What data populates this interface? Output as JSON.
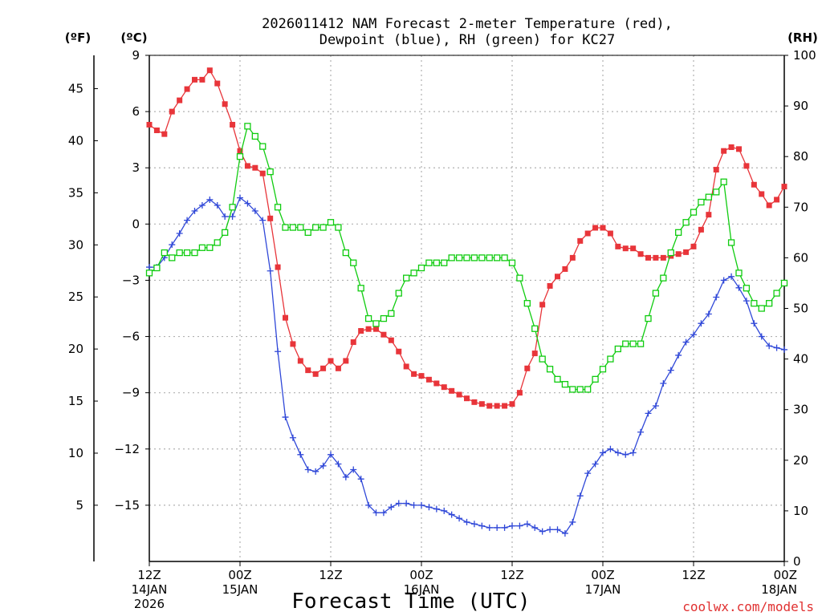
{
  "title": {
    "line1": "2026011412 NAM Forecast 2-meter Temperature (red),",
    "line2": "Dewpoint (blue), RH (green) for KC27"
  },
  "units": {
    "fahrenheit": "(ºF)",
    "celsius": "(ºC)",
    "rh": "(RH)"
  },
  "credit": "coolwx.com/models",
  "colors": {
    "temperature": "#e8353a",
    "dewpoint": "#3048d8",
    "rh": "#10cc10",
    "grid": "#b0b0b0"
  },
  "chart_data": {
    "type": "line",
    "title": "2026011412 NAM Forecast 2-meter Temperature (red), Dewpoint (blue), RH (green) for KC27",
    "xlabel": "Forecast Time (UTC)",
    "x_unit": "forecast hour (0 = 12Z 14JAN2026)",
    "xlim": [
      0,
      84
    ],
    "x_ticks": [
      {
        "hour": 0,
        "label": "12Z",
        "sub1": "14JAN",
        "sub2": "2026"
      },
      {
        "hour": 12,
        "label": "00Z",
        "sub1": "15JAN",
        "sub2": ""
      },
      {
        "hour": 24,
        "label": "12Z",
        "sub1": "",
        "sub2": ""
      },
      {
        "hour": 36,
        "label": "00Z",
        "sub1": "16JAN",
        "sub2": ""
      },
      {
        "hour": 48,
        "label": "12Z",
        "sub1": "",
        "sub2": ""
      },
      {
        "hour": 60,
        "label": "00Z",
        "sub1": "17JAN",
        "sub2": ""
      },
      {
        "hour": 72,
        "label": "12Z",
        "sub1": "",
        "sub2": ""
      },
      {
        "hour": 84,
        "label": "00Z",
        "sub1": "18JAN",
        "sub2": ""
      }
    ],
    "left_axis_celsius": {
      "ylim": [
        -18,
        9
      ],
      "ticks": [
        9,
        6,
        3,
        0,
        -3,
        -6,
        -9,
        -12,
        -15
      ]
    },
    "far_left_axis_fahrenheit": {
      "ticks": [
        45,
        40,
        35,
        30,
        25,
        20,
        15,
        10,
        5
      ]
    },
    "right_axis_rh": {
      "ylim": [
        0,
        100
      ],
      "ticks": [
        100,
        90,
        80,
        70,
        60,
        50,
        40,
        30,
        20,
        10,
        0
      ]
    },
    "series": [
      {
        "name": "Temperature (°C)",
        "axis": "celsius",
        "color": "#e8353a",
        "marker": "filled-square",
        "x": [
          0,
          1,
          2,
          3,
          4,
          5,
          6,
          7,
          8,
          9,
          10,
          11,
          12,
          13,
          14,
          15,
          16,
          17,
          18,
          19,
          20,
          21,
          22,
          23,
          24,
          25,
          26,
          27,
          28,
          29,
          30,
          31,
          32,
          33,
          34,
          35,
          36,
          37,
          38,
          39,
          40,
          41,
          42,
          43,
          44,
          45,
          46,
          47,
          48,
          49,
          50,
          51,
          52,
          53,
          54,
          55,
          56,
          57,
          58,
          59,
          60,
          61,
          62,
          63,
          64,
          65,
          66,
          67,
          68,
          69,
          70,
          71,
          72,
          73,
          74,
          75,
          76,
          77,
          78,
          79,
          80,
          81,
          82,
          83,
          84
        ],
        "values": [
          5.3,
          5.0,
          4.8,
          6.0,
          6.6,
          7.2,
          7.7,
          7.7,
          8.2,
          7.5,
          6.4,
          5.3,
          3.9,
          3.1,
          3.0,
          2.7,
          0.3,
          -2.3,
          -5.0,
          -6.4,
          -7.3,
          -7.8,
          -8.0,
          -7.7,
          -7.3,
          -7.7,
          -7.3,
          -6.3,
          -5.7,
          -5.6,
          -5.6,
          -5.9,
          -6.2,
          -6.8,
          -7.6,
          -8.0,
          -8.1,
          -8.3,
          -8.5,
          -8.7,
          -8.9,
          -9.1,
          -9.3,
          -9.5,
          -9.6,
          -9.7,
          -9.7,
          -9.7,
          -9.6,
          -9.0,
          -7.7,
          -6.9,
          -4.3,
          -3.3,
          -2.8,
          -2.4,
          -1.8,
          -0.9,
          -0.5,
          -0.2,
          -0.2,
          -0.5,
          -1.2,
          -1.3,
          -1.3,
          -1.6,
          -1.8,
          -1.8,
          -1.8,
          -1.7,
          -1.6,
          -1.5,
          -1.2,
          -0.3,
          0.5,
          2.9,
          3.9,
          4.1,
          4.0,
          3.1,
          2.1,
          1.6,
          1.0,
          1.3,
          2.0
        ]
      },
      {
        "name": "Dewpoint (°C)",
        "axis": "celsius",
        "color": "#3048d8",
        "marker": "plus",
        "x": [
          0,
          1,
          2,
          3,
          4,
          5,
          6,
          7,
          8,
          9,
          10,
          11,
          12,
          13,
          14,
          15,
          16,
          17,
          18,
          19,
          20,
          21,
          22,
          23,
          24,
          25,
          26,
          27,
          28,
          29,
          30,
          31,
          32,
          33,
          34,
          35,
          36,
          37,
          38,
          39,
          40,
          41,
          42,
          43,
          44,
          45,
          46,
          47,
          48,
          49,
          50,
          51,
          52,
          53,
          54,
          55,
          56,
          57,
          58,
          59,
          60,
          61,
          62,
          63,
          64,
          65,
          66,
          67,
          68,
          69,
          70,
          71,
          72,
          73,
          74,
          75,
          76,
          77,
          78,
          79,
          80,
          81,
          82,
          83,
          84
        ],
        "values": [
          -2.3,
          -2.3,
          -1.8,
          -1.1,
          -0.5,
          0.2,
          0.7,
          1.0,
          1.3,
          1.0,
          0.4,
          0.4,
          1.4,
          1.1,
          0.7,
          0.2,
          -2.5,
          -6.8,
          -10.3,
          -11.4,
          -12.3,
          -13.1,
          -13.2,
          -12.9,
          -12.3,
          -12.8,
          -13.5,
          -13.1,
          -13.6,
          -15.0,
          -15.4,
          -15.4,
          -15.1,
          -14.9,
          -14.9,
          -15.0,
          -15.0,
          -15.1,
          -15.2,
          -15.3,
          -15.5,
          -15.7,
          -15.9,
          -16.0,
          -16.1,
          -16.2,
          -16.2,
          -16.2,
          -16.1,
          -16.1,
          -16.0,
          -16.2,
          -16.4,
          -16.3,
          -16.3,
          -16.5,
          -15.9,
          -14.5,
          -13.3,
          -12.8,
          -12.2,
          -12.0,
          -12.2,
          -12.3,
          -12.2,
          -11.1,
          -10.1,
          -9.7,
          -8.5,
          -7.8,
          -7.0,
          -6.3,
          -5.9,
          -5.3,
          -4.8,
          -3.9,
          -3.0,
          -2.8,
          -3.4,
          -4.1,
          -5.3,
          -6.0,
          -6.5,
          -6.6,
          -6.7
        ]
      },
      {
        "name": "RH (%)",
        "axis": "rh",
        "color": "#10cc10",
        "marker": "open-square",
        "x": [
          0,
          1,
          2,
          3,
          4,
          5,
          6,
          7,
          8,
          9,
          10,
          11,
          12,
          13,
          14,
          15,
          16,
          17,
          18,
          19,
          20,
          21,
          22,
          23,
          24,
          25,
          26,
          27,
          28,
          29,
          30,
          31,
          32,
          33,
          34,
          35,
          36,
          37,
          38,
          39,
          40,
          41,
          42,
          43,
          44,
          45,
          46,
          47,
          48,
          49,
          50,
          51,
          52,
          53,
          54,
          55,
          56,
          57,
          58,
          59,
          60,
          61,
          62,
          63,
          64,
          65,
          66,
          67,
          68,
          69,
          70,
          71,
          72,
          73,
          74,
          75,
          76,
          77,
          78,
          79,
          80,
          81,
          82,
          83,
          84
        ],
        "values": [
          57,
          58,
          61,
          60,
          61,
          61,
          61,
          62,
          62,
          63,
          65,
          70,
          80,
          86,
          84,
          82,
          77,
          70,
          66,
          66,
          66,
          65,
          66,
          66,
          67,
          66,
          61,
          59,
          54,
          48,
          47,
          48,
          49,
          53,
          56,
          57,
          58,
          59,
          59,
          59,
          60,
          60,
          60,
          60,
          60,
          60,
          60,
          60,
          59,
          56,
          51,
          46,
          40,
          38,
          36,
          35,
          34,
          34,
          34,
          36,
          38,
          40,
          42,
          43,
          43,
          43,
          48,
          53,
          56,
          61,
          65,
          67,
          69,
          71,
          72,
          73,
          75,
          63,
          57,
          54,
          51,
          50,
          51,
          53,
          55
        ]
      }
    ]
  }
}
